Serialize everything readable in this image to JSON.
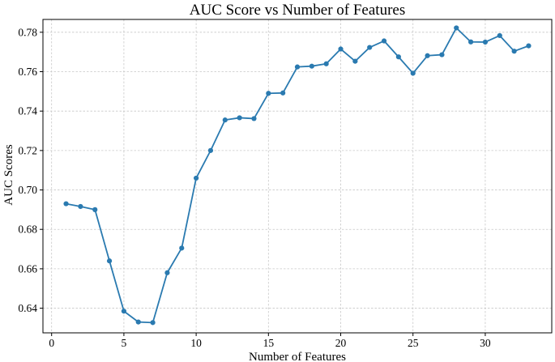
{
  "chart_data": {
    "type": "line",
    "title": "AUC Score vs Number of Features",
    "xlabel": "Number of Features",
    "ylabel": "AUC Scores",
    "xlim": [
      -0.6,
      34.6
    ],
    "ylim": [
      0.6275,
      0.7865
    ],
    "xticks": [
      0,
      5,
      10,
      15,
      20,
      25,
      30
    ],
    "yticks": [
      0.64,
      0.66,
      0.68,
      0.7,
      0.72,
      0.74,
      0.76,
      0.78
    ],
    "grid": true,
    "color": "#2a7ab0",
    "series": [
      {
        "x": [
          1,
          2,
          3,
          4,
          5,
          6,
          7,
          8,
          9,
          10,
          11,
          12,
          13,
          14,
          15,
          16,
          17,
          18,
          19,
          20,
          21,
          22,
          23,
          24,
          25,
          26,
          27,
          28,
          29,
          30,
          31,
          32,
          33
        ],
        "y": [
          0.693,
          0.6916,
          0.69,
          0.664,
          0.6385,
          0.633,
          0.6327,
          0.658,
          0.6705,
          0.706,
          0.72,
          0.7355,
          0.7366,
          0.7362,
          0.749,
          0.7492,
          0.7624,
          0.7628,
          0.764,
          0.7715,
          0.7653,
          0.7723,
          0.7756,
          0.7675,
          0.7592,
          0.7681,
          0.7686,
          0.7822,
          0.7751,
          0.775,
          0.7783,
          0.7704,
          0.7731
        ]
      }
    ]
  }
}
